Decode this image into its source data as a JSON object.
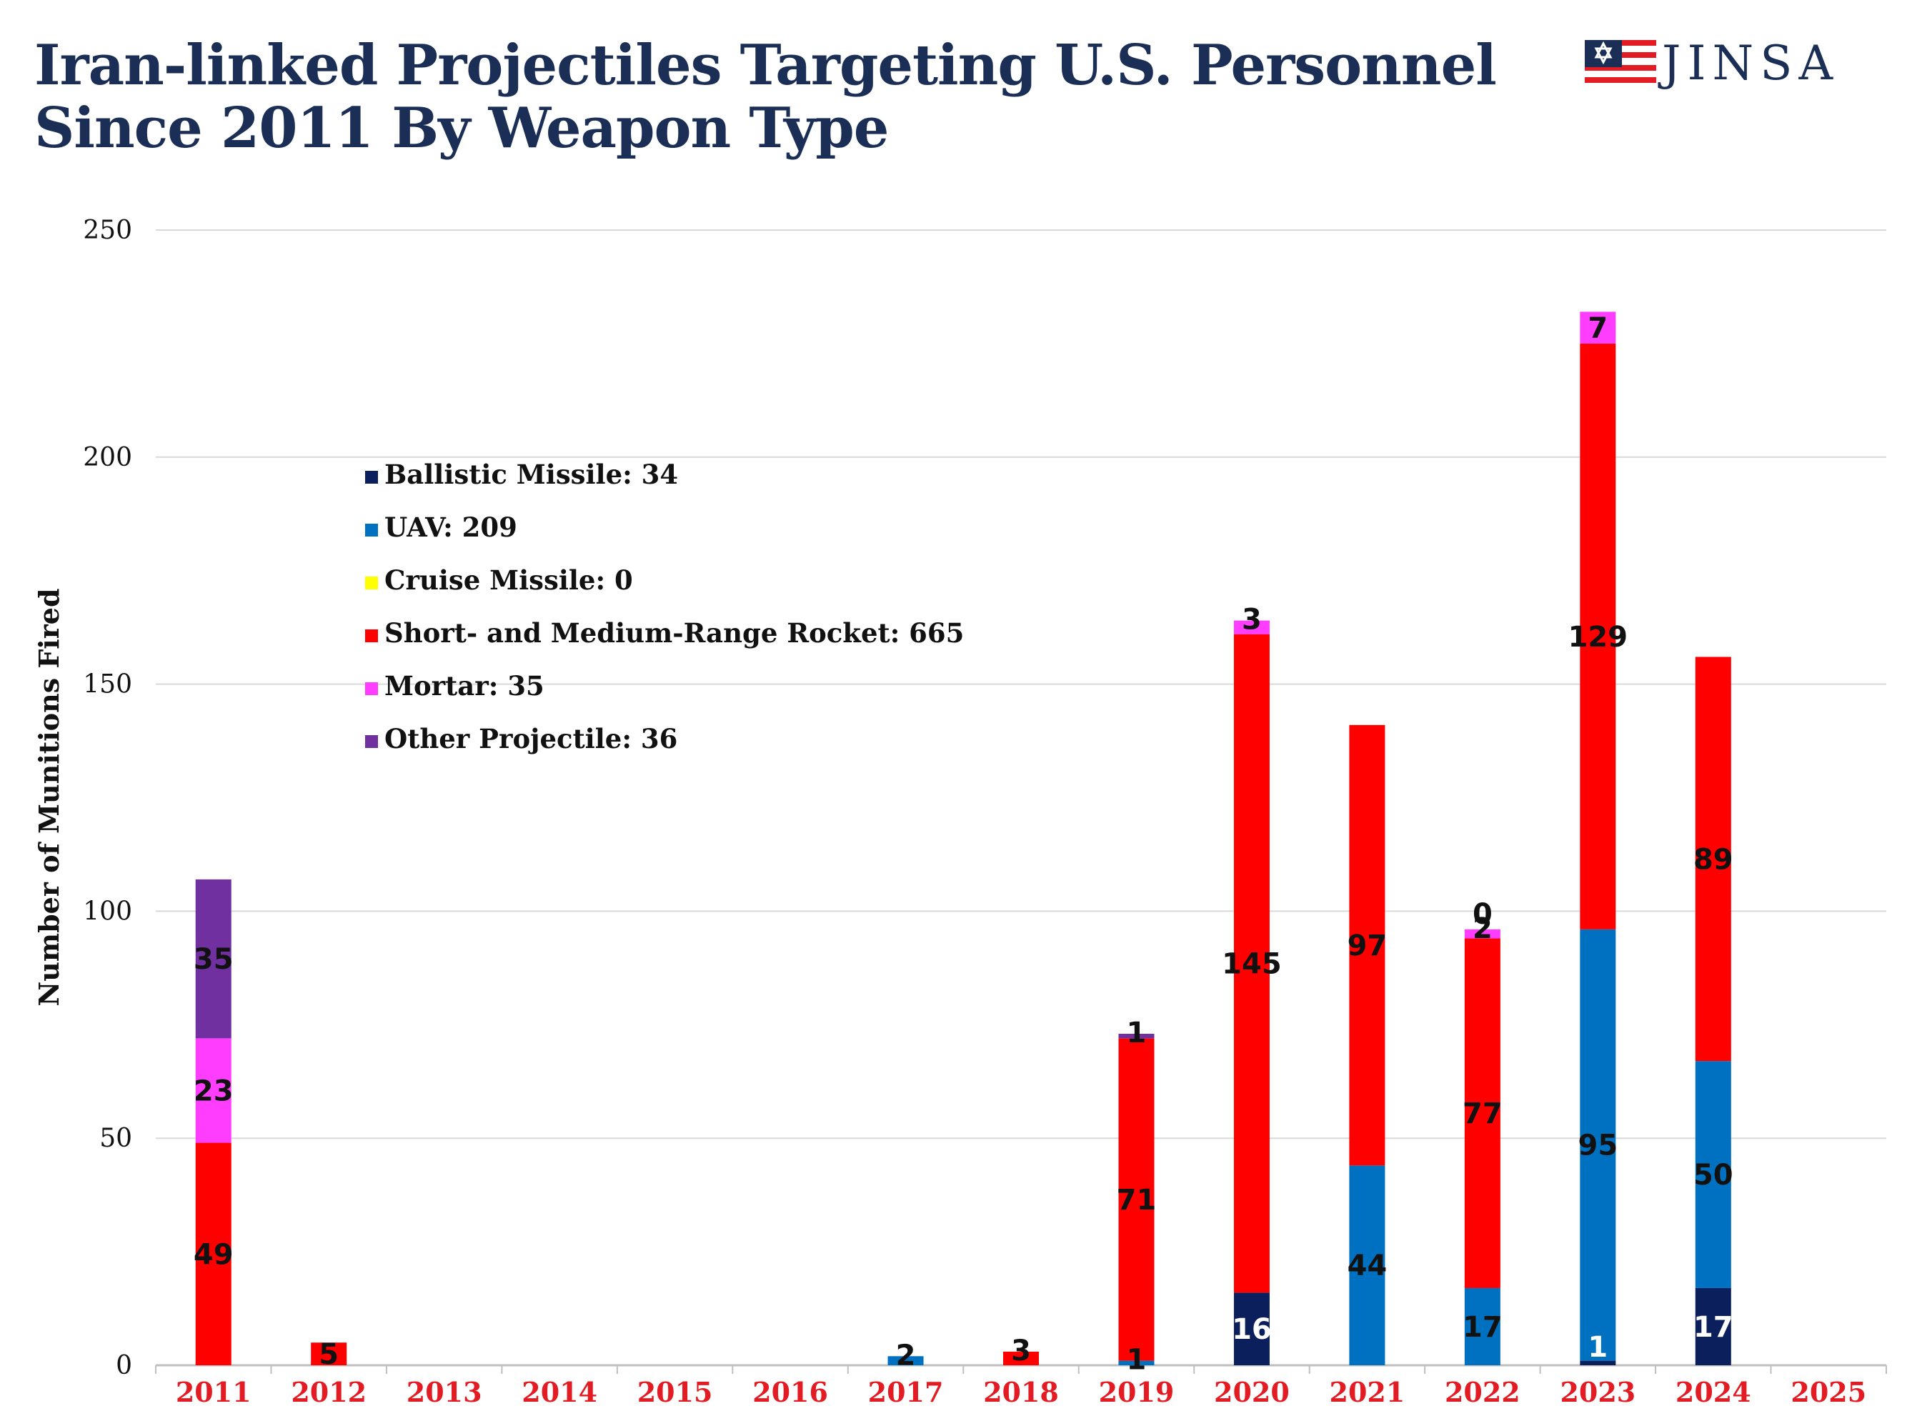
{
  "header": {
    "title_line1": "Iran-linked Projectiles Targeting U.S. Personnel",
    "title_line2": "Since 2011 By Weapon Type"
  },
  "logo": {
    "text": "JINSA",
    "colors": {
      "navy": "#1b2f56",
      "red": "#e31b23"
    }
  },
  "chart_data": {
    "type": "bar",
    "stacked": true,
    "title": "Iran-linked Projectiles Targeting U.S. Personnel Since 2011 By Weapon Type",
    "xlabel": "",
    "ylabel": "Number of Munitions Fired",
    "ylim": [
      0,
      250
    ],
    "yticks": [
      0,
      50,
      100,
      150,
      200,
      250
    ],
    "grid": true,
    "legend_position": "upper-left",
    "categories": [
      "2011",
      "2012",
      "2013",
      "2014",
      "2015",
      "2016",
      "2017",
      "2018",
      "2019",
      "2020",
      "2021",
      "2022",
      "2023",
      "2024",
      "2025"
    ],
    "series": [
      {
        "name": "Ballistic Missile",
        "legend": "Ballistic Missile: 34",
        "color": "#0b1f5c",
        "label_color": "#ffffff",
        "values": [
          0,
          0,
          0,
          0,
          0,
          0,
          0,
          0,
          0,
          16,
          0,
          0,
          1,
          17,
          0
        ],
        "labels": [
          null,
          null,
          null,
          null,
          null,
          null,
          null,
          null,
          null,
          "16",
          null,
          null,
          null,
          "17",
          null
        ]
      },
      {
        "name": "UAV",
        "legend": "UAV: 209",
        "color": "#0070c0",
        "label_color": "#111111",
        "values": [
          0,
          0,
          0,
          0,
          0,
          0,
          2,
          0,
          1,
          0,
          44,
          17,
          95,
          50,
          0
        ],
        "labels": [
          null,
          null,
          null,
          null,
          null,
          null,
          "2",
          null,
          "1",
          null,
          "44",
          "17",
          "95",
          "50",
          null
        ]
      },
      {
        "name": "Cruise Missile",
        "legend": "Cruise Missile: 0",
        "color": "#ffff00",
        "label_color": "#111111",
        "values": [
          0,
          0,
          0,
          0,
          0,
          0,
          0,
          0,
          0,
          0,
          0,
          0,
          0,
          0,
          0
        ],
        "labels": [
          null,
          null,
          null,
          null,
          null,
          null,
          null,
          null,
          null,
          null,
          null,
          null,
          null,
          null,
          null
        ]
      },
      {
        "name": "Short- and Medium-Range Rocket",
        "legend": "Short- and Medium-Range Rocket: 665",
        "color": "#ff0000",
        "label_color": "#111111",
        "values": [
          49,
          5,
          0,
          0,
          0,
          0,
          0,
          3,
          71,
          145,
          97,
          77,
          129,
          89,
          0
        ],
        "labels": [
          "49",
          "5",
          null,
          null,
          null,
          null,
          null,
          "3",
          "71",
          "145",
          "97",
          "77",
          "129",
          "89",
          null
        ]
      },
      {
        "name": "Mortar",
        "legend": "Mortar: 35",
        "color": "#ff3dff",
        "label_color": "#111111",
        "values": [
          23,
          0,
          0,
          0,
          0,
          0,
          0,
          0,
          0,
          3,
          0,
          2,
          7,
          0,
          0
        ],
        "labels": [
          "23",
          null,
          null,
          null,
          null,
          null,
          null,
          null,
          null,
          "3",
          null,
          "2",
          "7",
          null,
          null
        ]
      },
      {
        "name": "Other Projectile",
        "legend": "Other Projectile: 36",
        "color": "#7030a0",
        "label_color": "#111111",
        "values": [
          35,
          0,
          0,
          0,
          0,
          0,
          0,
          0,
          1,
          0,
          0,
          0,
          0,
          0,
          0
        ],
        "labels": [
          "35",
          null,
          null,
          null,
          null,
          null,
          null,
          null,
          "1",
          null,
          null,
          "0",
          null,
          null,
          null
        ]
      }
    ],
    "special_labels": [
      {
        "category": "2023",
        "series": "Ballistic Missile",
        "text": "1",
        "color": "#ffffff"
      }
    ]
  }
}
